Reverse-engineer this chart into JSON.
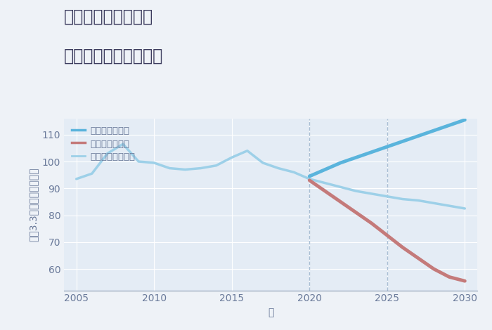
{
  "title_line1": "兵庫県姫路市楠町の",
  "title_line2": "中古戸建ての価格推移",
  "xlabel": "年",
  "ylabel": "坪（3.3㎡）単価（万円）",
  "background_color": "#eef2f7",
  "plot_bg_color": "#e4ecf5",
  "grid_color": "#ffffff",
  "ylim": [
    52,
    116
  ],
  "yticks": [
    60,
    70,
    80,
    90,
    100,
    110
  ],
  "xlim": [
    2004.2,
    2030.8
  ],
  "xticks": [
    2005,
    2010,
    2015,
    2020,
    2025,
    2030
  ],
  "good_scenario": {
    "label": "グッドシナリオ",
    "color": "#5ab4dc",
    "linewidth": 3.5,
    "x": [
      2020,
      2021,
      2022,
      2023,
      2024,
      2025,
      2026,
      2027,
      2028,
      2029,
      2030
    ],
    "y": [
      94.5,
      97.0,
      99.5,
      101.5,
      103.5,
      105.5,
      107.5,
      109.5,
      111.5,
      113.5,
      115.5
    ]
  },
  "bad_scenario": {
    "label": "バッドシナリオ",
    "color": "#c47a7a",
    "linewidth": 3.5,
    "x": [
      2020,
      2021,
      2022,
      2023,
      2024,
      2025,
      2026,
      2027,
      2028,
      2029,
      2030
    ],
    "y": [
      93.0,
      89.0,
      85.0,
      81.0,
      77.0,
      72.5,
      68.0,
      64.0,
      60.0,
      57.0,
      55.5
    ]
  },
  "normal_scenario": {
    "label": "ノーマルシナリオ",
    "color": "#9dd0e8",
    "linewidth": 2.5,
    "x_hist": [
      2005,
      2006,
      2007,
      2008,
      2009,
      2010,
      2011,
      2012,
      2013,
      2014,
      2015,
      2016,
      2017,
      2018,
      2019,
      2020
    ],
    "y_hist": [
      93.5,
      95.5,
      103.0,
      106.5,
      100.0,
      99.5,
      97.5,
      97.0,
      97.5,
      98.5,
      101.5,
      104.0,
      99.5,
      97.5,
      96.0,
      93.5
    ],
    "x_future": [
      2020,
      2021,
      2022,
      2023,
      2024,
      2025,
      2026,
      2027,
      2028,
      2029,
      2030
    ],
    "y_future": [
      93.5,
      92.0,
      90.5,
      89.0,
      88.0,
      87.0,
      86.0,
      85.5,
      84.5,
      83.5,
      82.5
    ]
  },
  "vline_2020": {
    "x": 2020,
    "color": "#aabfd4",
    "linewidth": 1.0,
    "linestyle": "--"
  },
  "vline_2025": {
    "x": 2025,
    "color": "#aabfd4",
    "linewidth": 1.0,
    "linestyle": "--"
  },
  "title_color": "#3a3a5c",
  "tick_color": "#6a7a9a",
  "label_color": "#6a7a9a",
  "legend_text_color": "#6a7a9a",
  "axis_line_color": "#8898b0"
}
